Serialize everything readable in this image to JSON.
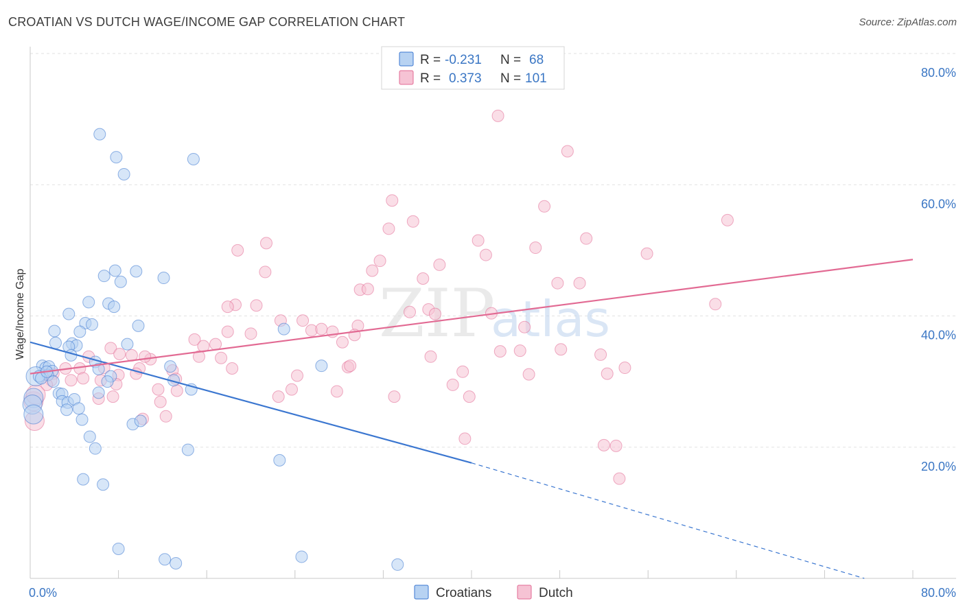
{
  "header": {
    "title": "CROATIAN VS DUTCH WAGE/INCOME GAP CORRELATION CHART",
    "source": "Source: ZipAtlas.com"
  },
  "colors": {
    "croatians": "#3a76d0",
    "croatians_fill": "#b7d2f2",
    "dutch": "#e26a93",
    "dutch_fill": "#f6c3d4",
    "tick": "#3a76c4",
    "grid": "#e2e2e2"
  },
  "watermark": {
    "zip": "ZIP",
    "atlas": "atlas"
  },
  "legend": {
    "r_label": "R =",
    "n_label": "N =",
    "croatians_r": "-0.231",
    "croatians_n": "68",
    "dutch_r": "0.373",
    "dutch_n": "101"
  },
  "chart_data": {
    "type": "scatter",
    "title": "CROATIAN VS DUTCH WAGE/INCOME GAP CORRELATION CHART",
    "ylabel": "Wage/Income Gap",
    "xlabel": "",
    "xlim": [
      0,
      80
    ],
    "ylim": [
      0,
      80
    ],
    "x_tick_labels": [
      "0.0%",
      "80.0%"
    ],
    "y_ticks": [
      20,
      40,
      60,
      80
    ],
    "y_tick_labels": [
      "20.0%",
      "40.0%",
      "60.0%",
      "80.0%"
    ],
    "legend_entries": [
      "Croatians",
      "Dutch"
    ],
    "series": [
      {
        "name": "Croatians",
        "trend": {
          "x0": 0,
          "y0": 36.0,
          "x1": 40,
          "y1": 17.6,
          "dashed_to_x": 75.6,
          "dashed_to_y": 0.0
        },
        "points": [
          [
            6.3,
            67.7
          ],
          [
            7.8,
            64.2
          ],
          [
            8.5,
            61.6
          ],
          [
            14.8,
            63.9
          ],
          [
            7.7,
            46.9
          ],
          [
            6.7,
            46.1
          ],
          [
            8.2,
            45.2
          ],
          [
            9.6,
            46.8
          ],
          [
            12.1,
            45.8
          ],
          [
            5.3,
            42.1
          ],
          [
            7.1,
            41.9
          ],
          [
            7.6,
            41.4
          ],
          [
            3.5,
            40.3
          ],
          [
            5.0,
            38.9
          ],
          [
            9.8,
            38.5
          ],
          [
            2.2,
            37.7
          ],
          [
            4.5,
            37.6
          ],
          [
            2.3,
            35.9
          ],
          [
            3.8,
            35.8
          ],
          [
            4.2,
            35.5
          ],
          [
            3.5,
            35.3
          ],
          [
            8.8,
            35.7
          ],
          [
            3.7,
            34.0
          ],
          [
            5.9,
            33.0
          ],
          [
            1.1,
            32.4
          ],
          [
            1.4,
            32.1
          ],
          [
            1.7,
            32.3
          ],
          [
            2.0,
            31.6
          ],
          [
            1.6,
            31.0
          ],
          [
            0.5,
            30.8
          ],
          [
            0.8,
            30.8
          ],
          [
            1.0,
            30.5
          ],
          [
            2.1,
            30.0
          ],
          [
            6.2,
            31.9
          ],
          [
            7.3,
            30.8
          ],
          [
            12.7,
            32.3
          ],
          [
            7.0,
            30.0
          ],
          [
            13.0,
            30.2
          ],
          [
            2.6,
            28.2
          ],
          [
            2.9,
            28.1
          ],
          [
            6.2,
            28.3
          ],
          [
            14.6,
            28.8
          ],
          [
            2.9,
            27.0
          ],
          [
            3.4,
            26.8
          ],
          [
            4.0,
            27.3
          ],
          [
            4.4,
            25.9
          ],
          [
            3.3,
            25.7
          ],
          [
            4.7,
            24.2
          ],
          [
            9.3,
            23.5
          ],
          [
            10.0,
            24.0
          ],
          [
            5.4,
            21.6
          ],
          [
            5.9,
            19.8
          ],
          [
            14.3,
            19.6
          ],
          [
            22.6,
            18.0
          ],
          [
            4.8,
            15.1
          ],
          [
            6.6,
            14.3
          ],
          [
            23.0,
            38.0
          ],
          [
            26.4,
            32.4
          ],
          [
            8.0,
            4.5
          ],
          [
            12.2,
            2.9
          ],
          [
            13.2,
            2.3
          ],
          [
            24.6,
            3.3
          ],
          [
            33.3,
            2.1
          ],
          [
            0.3,
            27.5
          ],
          [
            0.2,
            26.5
          ],
          [
            0.3,
            25.0
          ],
          [
            1.5,
            31.5
          ],
          [
            5.6,
            38.7
          ]
        ]
      },
      {
        "name": "Dutch",
        "trend": {
          "x0": 0,
          "y0": 31.2,
          "x1": 80,
          "y1": 48.6
        },
        "points": [
          [
            42.4,
            70.5
          ],
          [
            48.7,
            65.1
          ],
          [
            46.6,
            56.7
          ],
          [
            63.2,
            54.6
          ],
          [
            32.8,
            57.6
          ],
          [
            34.7,
            54.4
          ],
          [
            32.5,
            53.3
          ],
          [
            40.6,
            51.5
          ],
          [
            50.4,
            51.8
          ],
          [
            21.4,
            51.1
          ],
          [
            18.8,
            50.0
          ],
          [
            41.3,
            49.3
          ],
          [
            45.8,
            50.4
          ],
          [
            55.9,
            49.5
          ],
          [
            31.7,
            48.4
          ],
          [
            37.1,
            47.8
          ],
          [
            21.3,
            46.7
          ],
          [
            31.0,
            46.9
          ],
          [
            35.6,
            45.7
          ],
          [
            47.8,
            45.0
          ],
          [
            49.8,
            45.0
          ],
          [
            29.9,
            44.0
          ],
          [
            30.6,
            44.1
          ],
          [
            18.6,
            41.7
          ],
          [
            20.5,
            41.6
          ],
          [
            36.1,
            41.0
          ],
          [
            17.9,
            41.4
          ],
          [
            34.4,
            40.6
          ],
          [
            36.7,
            40.3
          ],
          [
            41.8,
            40.4
          ],
          [
            62.1,
            41.8
          ],
          [
            22.7,
            39.3
          ],
          [
            24.7,
            39.3
          ],
          [
            29.7,
            38.5
          ],
          [
            25.5,
            37.8
          ],
          [
            26.4,
            38.0
          ],
          [
            27.4,
            37.6
          ],
          [
            17.9,
            37.6
          ],
          [
            20.0,
            37.3
          ],
          [
            29.4,
            37.1
          ],
          [
            28.3,
            36.0
          ],
          [
            14.9,
            36.4
          ],
          [
            15.7,
            35.4
          ],
          [
            16.8,
            35.7
          ],
          [
            44.8,
            38.3
          ],
          [
            44.4,
            34.7
          ],
          [
            48.1,
            34.9
          ],
          [
            42.6,
            34.6
          ],
          [
            51.7,
            34.1
          ],
          [
            36.3,
            33.8
          ],
          [
            17.3,
            33.6
          ],
          [
            15.3,
            33.8
          ],
          [
            10.9,
            33.4
          ],
          [
            10.4,
            33.8
          ],
          [
            9.2,
            34.0
          ],
          [
            7.3,
            35.1
          ],
          [
            8.1,
            34.2
          ],
          [
            5.3,
            33.8
          ],
          [
            4.5,
            32.0
          ],
          [
            3.2,
            32.0
          ],
          [
            6.7,
            32.1
          ],
          [
            9.9,
            32.0
          ],
          [
            12.9,
            31.7
          ],
          [
            18.3,
            32.0
          ],
          [
            28.8,
            32.2
          ],
          [
            29.0,
            32.4
          ],
          [
            39.2,
            31.5
          ],
          [
            45.2,
            31.1
          ],
          [
            52.3,
            31.2
          ],
          [
            53.9,
            32.1
          ],
          [
            2.1,
            31.2
          ],
          [
            1.9,
            30.2
          ],
          [
            3.7,
            30.2
          ],
          [
            4.8,
            30.5
          ],
          [
            6.4,
            30.2
          ],
          [
            8.0,
            31.0
          ],
          [
            9.6,
            31.2
          ],
          [
            13.2,
            30.4
          ],
          [
            24.2,
            30.9
          ],
          [
            38.3,
            29.5
          ],
          [
            23.7,
            28.8
          ],
          [
            13.3,
            28.6
          ],
          [
            11.6,
            28.8
          ],
          [
            7.8,
            29.6
          ],
          [
            27.8,
            28.5
          ],
          [
            22.5,
            27.7
          ],
          [
            33.0,
            27.7
          ],
          [
            39.8,
            27.7
          ],
          [
            7.5,
            27.7
          ],
          [
            11.8,
            26.9
          ],
          [
            6.2,
            27.4
          ],
          [
            10.2,
            24.3
          ],
          [
            12.3,
            24.7
          ],
          [
            39.4,
            21.3
          ],
          [
            52.0,
            20.3
          ],
          [
            53.1,
            20.2
          ],
          [
            53.4,
            15.2
          ],
          [
            0.4,
            24.0
          ],
          [
            0.3,
            27.0
          ],
          [
            1.5,
            29.5
          ],
          [
            0.5,
            28.0
          ]
        ]
      }
    ]
  }
}
